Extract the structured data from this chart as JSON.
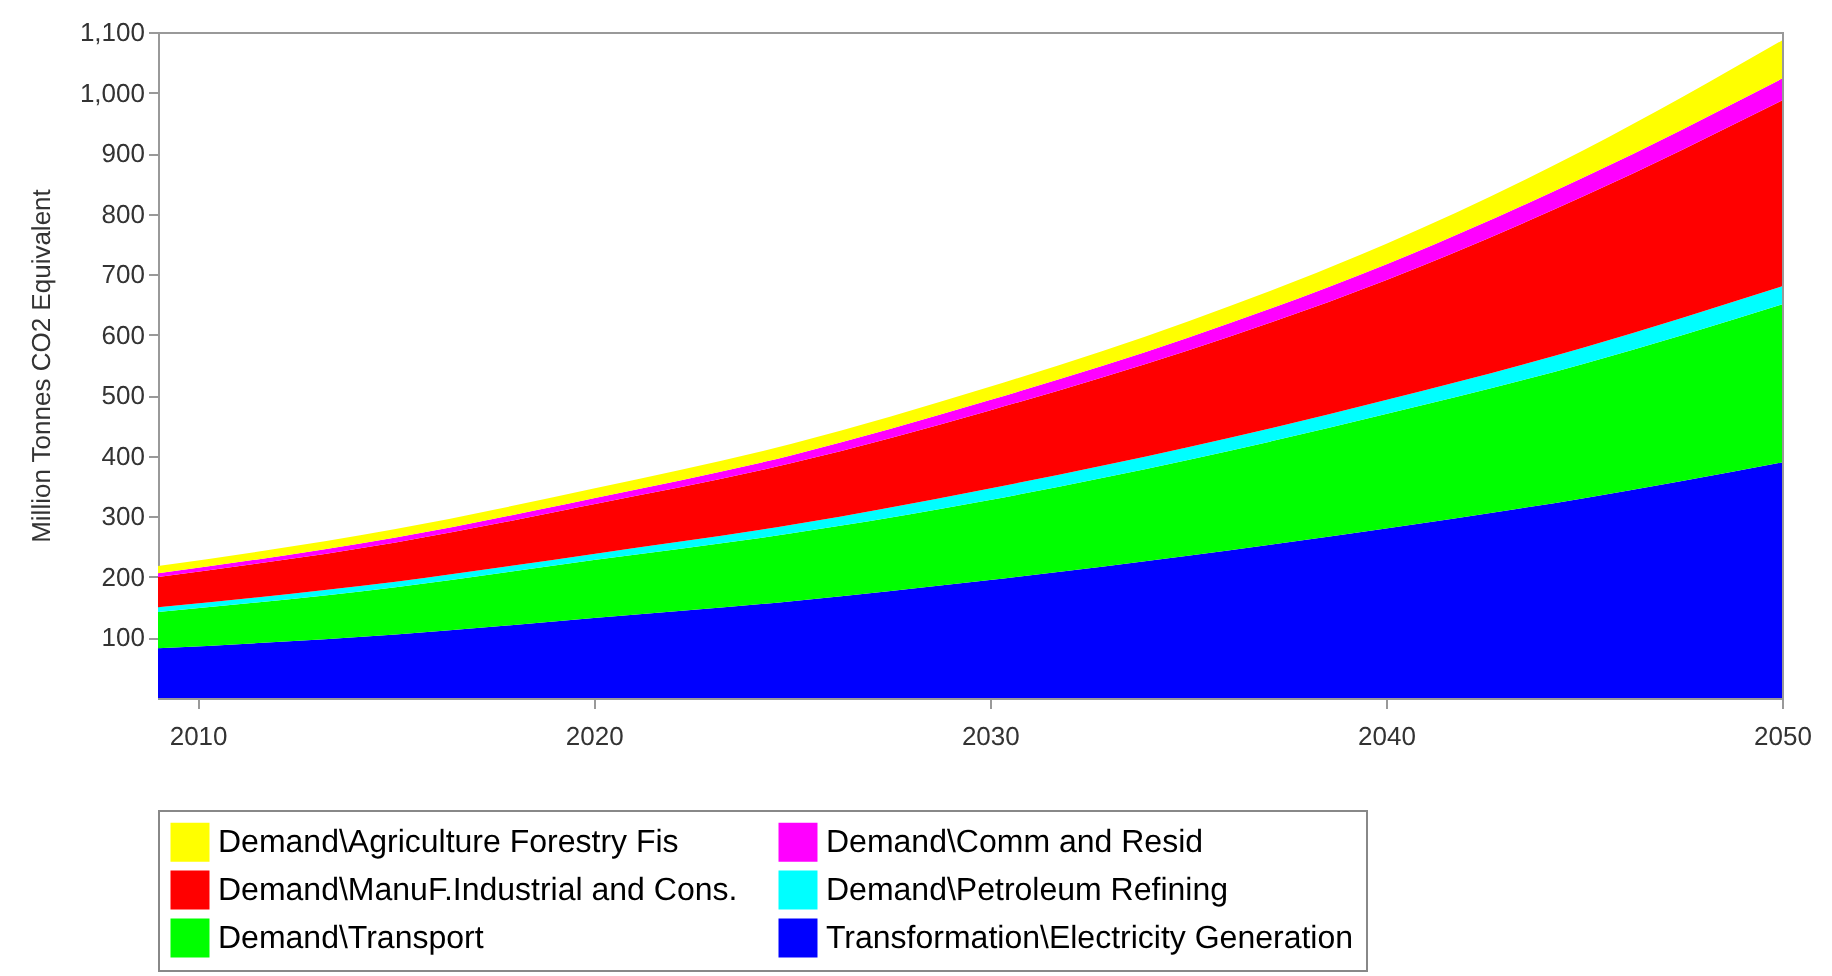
{
  "chart_data": {
    "type": "area",
    "stacked": true,
    "ylabel": "Million Tonnes CO2 Equivalent",
    "x": [
      2009,
      2015,
      2020,
      2025,
      2030,
      2035,
      2040,
      2045,
      2050
    ],
    "xlim": [
      2009,
      2050
    ],
    "xticks": [
      2010,
      2020,
      2030,
      2040,
      2050
    ],
    "ylim": [
      0,
      1100
    ],
    "yticks": [
      100,
      200,
      300,
      400,
      500,
      600,
      700,
      800,
      900,
      {
        "value": 1000,
        "label": "1,000"
      },
      {
        "value": 1100,
        "label": "1,100"
      }
    ],
    "grid": false,
    "legend": "bottom",
    "series": [
      {
        "name": "Transformation\\Electricity Generation",
        "color": "#0000ff",
        "values": [
          82,
          105,
          132,
          160,
          195,
          235,
          280,
          330,
          389
        ]
      },
      {
        "name": "Demand\\Transport",
        "color": "#00ff00",
        "values": [
          60,
          78,
          96,
          112,
          132,
          158,
          189,
          222,
          261
        ]
      },
      {
        "name": "Demand\\Petroleum Refining",
        "color": "#00ffff",
        "values": [
          8,
          9,
          10,
          14,
          19,
          21,
          23,
          27,
          30
        ]
      },
      {
        "name": "Demand\\ManuF.Industrial and Cons.",
        "color": "#ff0000",
        "values": [
          50,
          65,
          82,
          102,
          129,
          160,
          198,
          250,
          307
        ]
      },
      {
        "name": "Demand\\Comm and Resid",
        "color": "#ff00ff",
        "values": [
          6,
          8,
          10,
          13,
          17,
          21,
          26,
          31,
          36
        ]
      },
      {
        "name": "Demand\\Agriculture Forestry Fis",
        "color": "#ffff00",
        "values": [
          12,
          14,
          16,
          19,
          22,
          27,
          34,
          45,
          63
        ]
      }
    ]
  }
}
